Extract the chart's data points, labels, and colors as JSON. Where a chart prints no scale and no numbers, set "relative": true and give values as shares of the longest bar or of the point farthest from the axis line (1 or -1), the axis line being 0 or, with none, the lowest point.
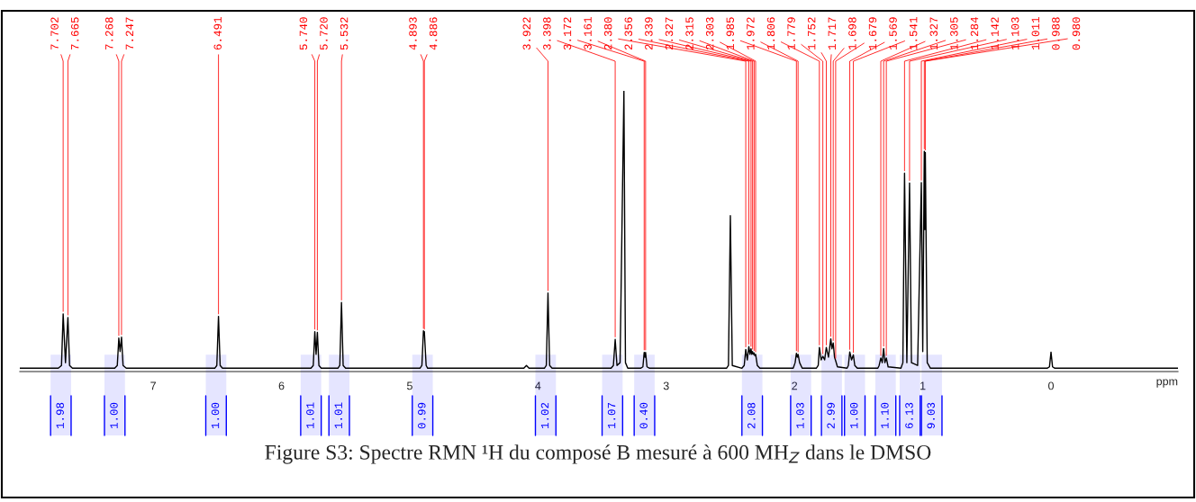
{
  "chart_data": {
    "type": "line",
    "relative": true,
    "xlabel": "ppm",
    "xlim": [
      8.04,
      -0.99
    ],
    "xticks": [
      7,
      6,
      5,
      4,
      3,
      2,
      1,
      0
    ],
    "grid": false,
    "legend": false,
    "marker": "none",
    "line_style": "solid",
    "series": [
      {
        "color": "#000000",
        "x": [
          8.04,
          7.74,
          7.715,
          7.702,
          7.684,
          7.665,
          7.652,
          7.63,
          7.3,
          7.28,
          7.268,
          7.258,
          7.247,
          7.235,
          7.21,
          6.52,
          6.504,
          6.491,
          6.478,
          6.46,
          5.77,
          5.752,
          5.74,
          5.73,
          5.72,
          5.708,
          5.69,
          5.56,
          5.545,
          5.532,
          5.519,
          5.5,
          4.92,
          4.905,
          4.893,
          4.889,
          4.886,
          4.872,
          4.86,
          4.11,
          4.09,
          4.07,
          3.95,
          3.935,
          3.922,
          3.909,
          3.89,
          3.43,
          3.412,
          3.398,
          3.384,
          3.36,
          3.33,
          3.318,
          3.3,
          3.2,
          3.182,
          3.172,
          3.166,
          3.161,
          3.15,
          3.13,
          2.53,
          2.515,
          2.5,
          2.485,
          2.41,
          2.392,
          2.38,
          2.368,
          2.356,
          2.347,
          2.339,
          2.333,
          2.327,
          2.321,
          2.315,
          2.309,
          2.303,
          2.29,
          2.27,
          2.01,
          1.995,
          1.985,
          1.978,
          1.972,
          1.96,
          1.94,
          1.83,
          1.815,
          1.806,
          1.792,
          1.779,
          1.765,
          1.752,
          1.735,
          1.717,
          1.708,
          1.698,
          1.688,
          1.679,
          1.665,
          1.59,
          1.58,
          1.569,
          1.555,
          1.541,
          1.53,
          1.51,
          1.35,
          1.34,
          1.327,
          1.316,
          1.305,
          1.295,
          1.284,
          1.27,
          1.17,
          1.155,
          1.142,
          1.124,
          1.103,
          1.088,
          1.04,
          1.011,
          1.0,
          0.988,
          0.984,
          0.98,
          0.965,
          0.94,
          0.03,
          0.012,
          0.0,
          -0.012,
          -0.03,
          -0.99
        ],
        "values": [
          0,
          0,
          0.01,
          0.196,
          0.02,
          0.183,
          0.01,
          0,
          0,
          0.01,
          0.109,
          0.06,
          0.112,
          0.01,
          0,
          0,
          0.01,
          0.187,
          0.01,
          0,
          0,
          0.01,
          0.132,
          0.05,
          0.129,
          0.01,
          0,
          0,
          0.01,
          0.237,
          0.01,
          0,
          0,
          0.01,
          0.135,
          0.12,
          0.132,
          0.01,
          0,
          0,
          0.01,
          0,
          0,
          0.01,
          0.271,
          0.01,
          0,
          0,
          0.01,
          0.104,
          0.01,
          0.02,
          1.0,
          0.02,
          0,
          0,
          0.005,
          0.057,
          0.04,
          0.057,
          0.005,
          0,
          0,
          0.01,
          0.55,
          0.01,
          0,
          0.01,
          0.068,
          0.03,
          0.078,
          0.05,
          0.07,
          0.05,
          0.06,
          0.05,
          0.055,
          0.045,
          0.05,
          0.01,
          0,
          0,
          0.02,
          0.054,
          0.04,
          0.05,
          0.02,
          0,
          0,
          0.01,
          0.075,
          0.03,
          0.043,
          0.03,
          0.075,
          0.04,
          0.106,
          0.07,
          0.091,
          0.04,
          0.027,
          0.005,
          0,
          0.01,
          0.059,
          0.03,
          0.048,
          0.01,
          0,
          0,
          0.01,
          0.037,
          0.02,
          0.071,
          0.02,
          0.037,
          0.005,
          0,
          0.02,
          0.703,
          0.02,
          0.668,
          0.02,
          0.01,
          0.669,
          0.06,
          0.782,
          0.5,
          0.778,
          0.02,
          0,
          0,
          0.005,
          0.058,
          0.005,
          0,
          0
        ]
      }
    ],
    "bands": [
      {
        "axis": "x",
        "from": 7.8,
        "to": 7.64,
        "label": "1.98",
        "color": "#0000ff"
      },
      {
        "axis": "x",
        "from": 7.38,
        "to": 7.22,
        "label": "1.00",
        "color": "#0000ff"
      },
      {
        "axis": "x",
        "from": 6.59,
        "to": 6.43,
        "label": "1.00",
        "color": "#0000ff"
      },
      {
        "axis": "x",
        "from": 5.85,
        "to": 5.69,
        "label": "1.01",
        "color": "#0000ff"
      },
      {
        "axis": "x",
        "from": 5.63,
        "to": 5.47,
        "label": "1.01",
        "color": "#0000ff"
      },
      {
        "axis": "x",
        "from": 4.98,
        "to": 4.82,
        "label": "0.99",
        "color": "#0000ff"
      },
      {
        "axis": "x",
        "from": 4.02,
        "to": 3.86,
        "label": "1.02",
        "color": "#0000ff"
      },
      {
        "axis": "x",
        "from": 3.5,
        "to": 3.34,
        "label": "1.07",
        "color": "#0000ff"
      },
      {
        "axis": "x",
        "from": 3.25,
        "to": 3.09,
        "label": "0.40",
        "color": "#0000ff"
      },
      {
        "axis": "x",
        "from": 2.41,
        "to": 2.25,
        "label": "2.08",
        "color": "#0000ff"
      },
      {
        "axis": "x",
        "from": 2.03,
        "to": 1.87,
        "label": "1.03",
        "color": "#0000ff"
      },
      {
        "axis": "x",
        "from": 1.79,
        "to": 1.63,
        "label": "2.99",
        "color": "#0000ff"
      },
      {
        "axis": "x",
        "from": 1.61,
        "to": 1.45,
        "label": "1.00",
        "color": "#0000ff"
      },
      {
        "axis": "x",
        "from": 1.37,
        "to": 1.21,
        "label": "1.10",
        "color": "#0000ff"
      },
      {
        "axis": "x",
        "from": 1.18,
        "to": 1.02,
        "label": "6.13",
        "color": "#0000ff"
      },
      {
        "axis": "x",
        "from": 1.01,
        "to": 0.85,
        "label": "9.03",
        "color": "#0000ff"
      }
    ],
    "annotations": [
      {
        "text": "7.702",
        "x": 7.702,
        "y": 0.196
      },
      {
        "text": "7.665",
        "x": 7.665,
        "y": 0.183
      },
      {
        "text": "7.268",
        "x": 7.268,
        "y": 0.109
      },
      {
        "text": "7.247",
        "x": 7.247,
        "y": 0.112
      },
      {
        "text": "6.491",
        "x": 6.491,
        "y": 0.187
      },
      {
        "text": "5.740",
        "x": 5.74,
        "y": 0.132
      },
      {
        "text": "5.720",
        "x": 5.72,
        "y": 0.129
      },
      {
        "text": "5.532",
        "x": 5.532,
        "y": 0.237
      },
      {
        "text": "4.893",
        "x": 4.893,
        "y": 0.135
      },
      {
        "text": "4.886",
        "x": 4.886,
        "y": 0.132
      },
      {
        "text": "3.922",
        "x": 3.922,
        "y": 0.271
      },
      {
        "text": "3.398",
        "x": 3.398,
        "y": 0.104
      },
      {
        "text": "3.172",
        "x": 3.172,
        "y": 0.057
      },
      {
        "text": "3.161",
        "x": 3.161,
        "y": 0.057
      },
      {
        "text": "2.380",
        "x": 2.38,
        "y": 0.068
      },
      {
        "text": "2.356",
        "x": 2.356,
        "y": 0.078
      },
      {
        "text": "2.339",
        "x": 2.339,
        "y": 0.07
      },
      {
        "text": "2.327",
        "x": 2.327,
        "y": 0.06
      },
      {
        "text": "2.315",
        "x": 2.315,
        "y": 0.055
      },
      {
        "text": "2.303",
        "x": 2.303,
        "y": 0.05
      },
      {
        "text": "1.985",
        "x": 1.985,
        "y": 0.054
      },
      {
        "text": "1.972",
        "x": 1.972,
        "y": 0.05
      },
      {
        "text": "1.806",
        "x": 1.806,
        "y": 0.075
      },
      {
        "text": "1.779",
        "x": 1.779,
        "y": 0.043
      },
      {
        "text": "1.752",
        "x": 1.752,
        "y": 0.075
      },
      {
        "text": "1.717",
        "x": 1.717,
        "y": 0.106
      },
      {
        "text": "1.698",
        "x": 1.698,
        "y": 0.091
      },
      {
        "text": "1.679",
        "x": 1.679,
        "y": 0.027
      },
      {
        "text": "1.569",
        "x": 1.569,
        "y": 0.059
      },
      {
        "text": "1.541",
        "x": 1.541,
        "y": 0.048
      },
      {
        "text": "1.327",
        "x": 1.327,
        "y": 0.037
      },
      {
        "text": "1.305",
        "x": 1.305,
        "y": 0.071
      },
      {
        "text": "1.284",
        "x": 1.284,
        "y": 0.037
      },
      {
        "text": "1.142",
        "x": 1.142,
        "y": 0.703
      },
      {
        "text": "1.103",
        "x": 1.103,
        "y": 0.668
      },
      {
        "text": "1.011",
        "x": 1.011,
        "y": 0.669
      },
      {
        "text": "0.988",
        "x": 0.988,
        "y": 0.782
      },
      {
        "text": "0.980",
        "x": 0.98,
        "y": 0.778
      },
      "Figure S3: Spectre RMN ¹H du composé B mesuré à 600 MH$_{Z}$ dans le DMSO"
    ]
  }
}
